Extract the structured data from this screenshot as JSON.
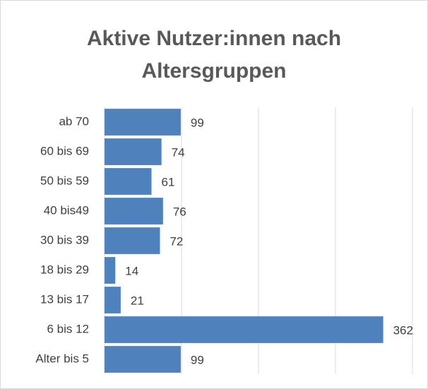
{
  "chart_data": {
    "type": "bar",
    "orientation": "horizontal",
    "title": "Aktive Nutzer:innen nach Altersgruppen",
    "categories": [
      "ab 70",
      "60 bis 69",
      "50 bis 59",
      "40 bis49",
      "30 bis 39",
      "18 bis 29",
      "13 bis 17",
      "6 bis 12",
      "Alter bis 5"
    ],
    "values": [
      99,
      74,
      61,
      76,
      72,
      14,
      21,
      362,
      99
    ],
    "color": "#4f81bd",
    "xlim": [
      0,
      400
    ],
    "xticks": [
      0,
      100,
      200,
      300,
      400
    ],
    "grid": true
  }
}
